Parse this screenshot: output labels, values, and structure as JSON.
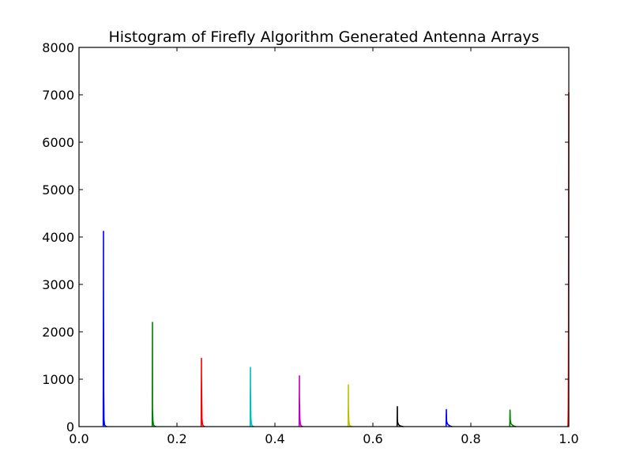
{
  "chart_data": {
    "type": "line",
    "title": "Histogram of Firefly Algorithm Generated Antenna Arrays",
    "xlabel": "",
    "ylabel": "",
    "xlim": [
      0.0,
      1.0
    ],
    "ylim": [
      0,
      8000
    ],
    "x_ticks": [
      0.0,
      0.2,
      0.4,
      0.6,
      0.8,
      1.0
    ],
    "x_tick_labels": [
      "0.0",
      "0.2",
      "0.4",
      "0.6",
      "0.8",
      "1.0"
    ],
    "y_ticks": [
      0,
      1000,
      2000,
      3000,
      4000,
      5000,
      6000,
      7000,
      8000
    ],
    "y_tick_labels": [
      "0",
      "1000",
      "2000",
      "3000",
      "4000",
      "5000",
      "6000",
      "7000",
      "8000"
    ],
    "grid": false,
    "legend": "none",
    "series": [
      {
        "color": "#0000ff",
        "x": [
          0.0495,
          0.05,
          0.05,
          0.0505,
          0.051,
          0.052,
          0.054,
          0.057
        ],
        "y": [
          0,
          4120,
          3000,
          700,
          150,
          40,
          10,
          0
        ]
      },
      {
        "color": "#008000",
        "x": [
          0.1495,
          0.15,
          0.15,
          0.1505,
          0.151,
          0.152,
          0.154,
          0.157
        ],
        "y": [
          0,
          2200,
          380,
          250,
          120,
          40,
          10,
          0
        ]
      },
      {
        "color": "#ff0000",
        "x": [
          0.2495,
          0.25,
          0.25,
          0.2505,
          0.251,
          0.252,
          0.254,
          0.257
        ],
        "y": [
          0,
          1440,
          1100,
          600,
          180,
          50,
          10,
          0
        ]
      },
      {
        "color": "#00bfbf",
        "x": [
          0.3495,
          0.35,
          0.35,
          0.3505,
          0.351,
          0.352,
          0.354,
          0.357
        ],
        "y": [
          0,
          1250,
          900,
          500,
          180,
          50,
          10,
          0
        ]
      },
      {
        "color": "#bf00bf",
        "x": [
          0.4495,
          0.45,
          0.45,
          0.4505,
          0.451,
          0.452,
          0.454,
          0.457
        ],
        "y": [
          0,
          1070,
          650,
          400,
          150,
          50,
          10,
          0
        ]
      },
      {
        "color": "#bfbf00",
        "x": [
          0.5495,
          0.55,
          0.55,
          0.5505,
          0.551,
          0.552,
          0.554,
          0.557
        ],
        "y": [
          0,
          880,
          420,
          250,
          110,
          40,
          10,
          0
        ]
      },
      {
        "color": "#000000",
        "x": [
          0.6495,
          0.65,
          0.65,
          0.6505,
          0.652,
          0.654,
          0.657,
          0.662
        ],
        "y": [
          0,
          420,
          150,
          90,
          50,
          25,
          10,
          0
        ]
      },
      {
        "color": "#0000ff",
        "x": [
          0.7495,
          0.75,
          0.7505,
          0.752,
          0.755,
          0.758,
          0.762
        ],
        "y": [
          0,
          360,
          120,
          60,
          30,
          10,
          0
        ]
      },
      {
        "color": "#008000",
        "x": [
          0.8795,
          0.88,
          0.8805,
          0.882,
          0.885,
          0.888,
          0.892
        ],
        "y": [
          0,
          350,
          140,
          60,
          30,
          10,
          0
        ]
      },
      {
        "color": "#ff0000",
        "x": [
          0.998,
          0.9985,
          0.999,
          0.9995,
          1.0
        ],
        "y": [
          0,
          40,
          400,
          2000,
          7050
        ]
      }
    ]
  }
}
